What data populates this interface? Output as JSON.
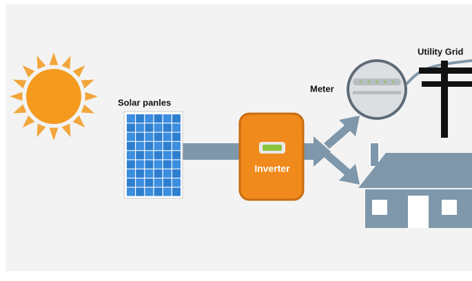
{
  "labels": {
    "solar_panels": "Solar panles",
    "inverter": "Inverter",
    "meter": "Meter",
    "utility_grid": "Utility Grid"
  }
}
